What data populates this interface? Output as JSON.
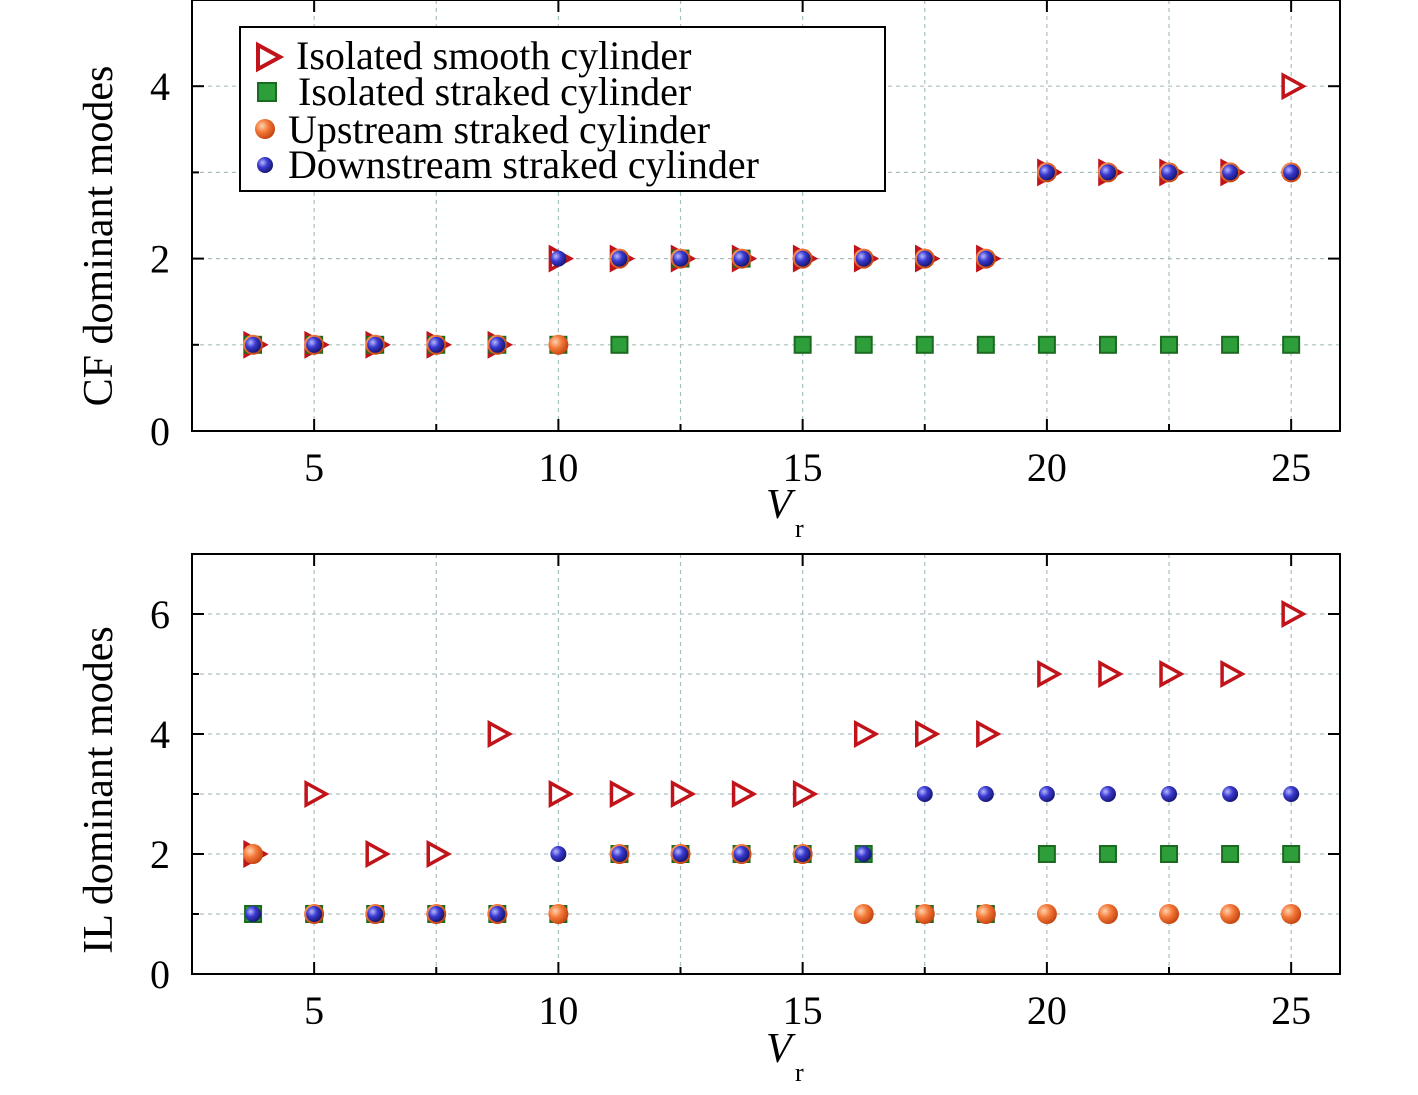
{
  "colors": {
    "isolated_smooth": "#c0141a",
    "isolated_straked_fill": "#2e9e3a",
    "isolated_straked_edge": "#1a6b1f",
    "upstream": "#f06a2a",
    "downstream": "#3434c4",
    "grid": "#a9c0c0"
  },
  "chart_data": [
    {
      "type": "scatter",
      "ylabel": "CF dominant modes",
      "xlabel_main": "V",
      "xlabel_sub": "r",
      "xlim": [
        2.5,
        26
      ],
      "ylim": [
        0,
        5
      ],
      "xticks": [
        5,
        10,
        15,
        20,
        25
      ],
      "yticks": [
        0,
        2,
        4
      ],
      "minor_yticks": [
        1,
        3
      ],
      "grid": true,
      "legend": {
        "placement": "top-left",
        "entries": [
          "Isolated smooth cylinder",
          " Isolated straked cylinder",
          "Upstream straked cylinder",
          "Downstream straked cylinder"
        ]
      },
      "series": [
        {
          "name": "Isolated smooth cylinder",
          "marker": "triangle-right",
          "x": [
            3.75,
            5,
            6.25,
            7.5,
            8.75,
            10,
            11.25,
            12.5,
            13.75,
            15,
            16.25,
            17.5,
            18.75,
            20,
            21.25,
            22.5,
            23.75,
            25
          ],
          "y": [
            1,
            1,
            1,
            1,
            1,
            2,
            2,
            2,
            2,
            2,
            2,
            2,
            2,
            3,
            3,
            3,
            3,
            4
          ]
        },
        {
          "name": " Isolated straked cylinder",
          "marker": "square",
          "x": [
            3.75,
            5,
            6.25,
            7.5,
            8.75,
            10,
            11.25,
            12.5,
            13.75,
            15,
            16.25,
            17.5,
            18.75,
            20,
            21.25,
            22.5,
            23.75,
            25
          ],
          "y": [
            1,
            1,
            1,
            1,
            1,
            1,
            1,
            2,
            2,
            1,
            1,
            1,
            1,
            1,
            1,
            1,
            1,
            1
          ]
        },
        {
          "name": "Upstream straked cylinder",
          "marker": "circle",
          "x": [
            3.75,
            5,
            6.25,
            7.5,
            8.75,
            10,
            11.25,
            12.5,
            13.75,
            15,
            16.25,
            17.5,
            18.75,
            20,
            21.25,
            22.5,
            23.75,
            25
          ],
          "y": [
            1,
            1,
            1,
            1,
            1,
            1,
            2,
            2,
            2,
            2,
            2,
            2,
            2,
            3,
            3,
            3,
            3,
            3
          ]
        },
        {
          "name": "Downstream straked cylinder",
          "marker": "circle",
          "x": [
            3.75,
            5,
            6.25,
            7.5,
            8.75,
            10,
            11.25,
            12.5,
            13.75,
            15,
            16.25,
            17.5,
            18.75,
            20,
            21.25,
            22.5,
            23.75,
            25
          ],
          "y": [
            1,
            1,
            1,
            1,
            1,
            2,
            2,
            2,
            2,
            2,
            2,
            2,
            2,
            3,
            3,
            3,
            3,
            3
          ]
        }
      ]
    },
    {
      "type": "scatter",
      "ylabel": "IL dominant modes",
      "xlabel_main": "V",
      "xlabel_sub": "r",
      "xlim": [
        2.5,
        26
      ],
      "ylim": [
        0,
        7
      ],
      "xticks": [
        5,
        10,
        15,
        20,
        25
      ],
      "yticks": [
        0,
        2,
        4,
        6
      ],
      "minor_yticks": [
        1,
        3,
        5
      ],
      "grid": true,
      "series": [
        {
          "name": "Isolated smooth cylinder",
          "marker": "triangle-right",
          "x": [
            3.75,
            5,
            6.25,
            7.5,
            8.75,
            10,
            11.25,
            12.5,
            13.75,
            15,
            16.25,
            17.5,
            18.75,
            20,
            21.25,
            22.5,
            23.75,
            25
          ],
          "y": [
            2,
            3,
            2,
            2,
            4,
            3,
            3,
            3,
            3,
            3,
            4,
            4,
            4,
            5,
            5,
            5,
            5,
            6
          ]
        },
        {
          "name": " Isolated straked cylinder",
          "marker": "square",
          "x": [
            3.75,
            5,
            6.25,
            7.5,
            8.75,
            10,
            11.25,
            12.5,
            13.75,
            15,
            16.25,
            17.5,
            18.75,
            20,
            21.25,
            22.5,
            23.75,
            25
          ],
          "y": [
            1,
            1,
            1,
            1,
            1,
            1,
            2,
            2,
            2,
            2,
            2,
            1,
            1,
            2,
            2,
            2,
            2,
            2
          ]
        },
        {
          "name": "Upstream straked cylinder",
          "marker": "circle",
          "x": [
            3.75,
            5,
            6.25,
            7.5,
            8.75,
            10,
            11.25,
            12.5,
            13.75,
            15,
            16.25,
            17.5,
            18.75,
            20,
            21.25,
            22.5,
            23.75,
            25
          ],
          "y": [
            2,
            1,
            1,
            1,
            1,
            1,
            2,
            2,
            2,
            2,
            1,
            1,
            1,
            1,
            1,
            1,
            1,
            1
          ]
        },
        {
          "name": "Downstream straked cylinder",
          "marker": "circle",
          "x": [
            3.75,
            5,
            6.25,
            7.5,
            8.75,
            10,
            11.25,
            12.5,
            13.75,
            15,
            16.25,
            17.5,
            18.75,
            20,
            21.25,
            22.5,
            23.75,
            25
          ],
          "y": [
            1,
            1,
            1,
            1,
            1,
            2,
            2,
            2,
            2,
            2,
            2,
            3,
            3,
            3,
            3,
            3,
            3,
            3
          ]
        }
      ]
    }
  ]
}
